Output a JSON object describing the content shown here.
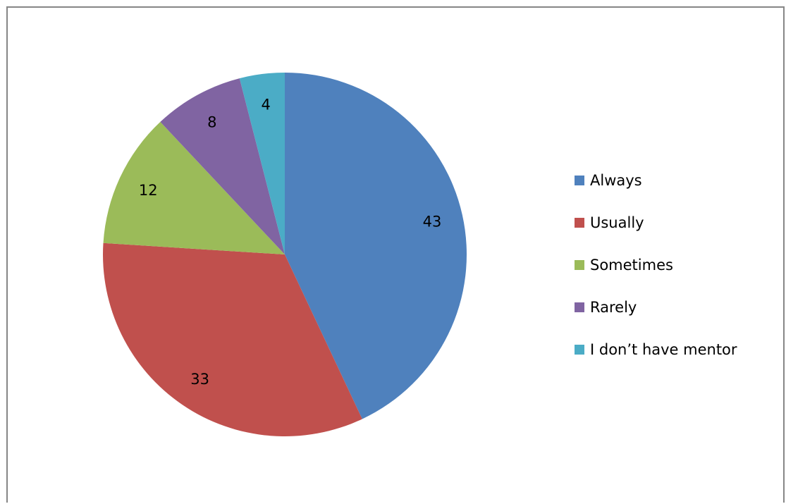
{
  "chart_data": {
    "type": "pie",
    "categories": [
      "Always",
      "Usually",
      "Sometimes",
      "Rarely",
      "I don’t have mentor"
    ],
    "values": [
      43,
      33,
      12,
      8,
      4
    ],
    "colors": [
      "#4F81BD",
      "#C0504D",
      "#9BBB59",
      "#8064A2",
      "#4BACC6"
    ],
    "legend_position": "right",
    "title": ""
  }
}
